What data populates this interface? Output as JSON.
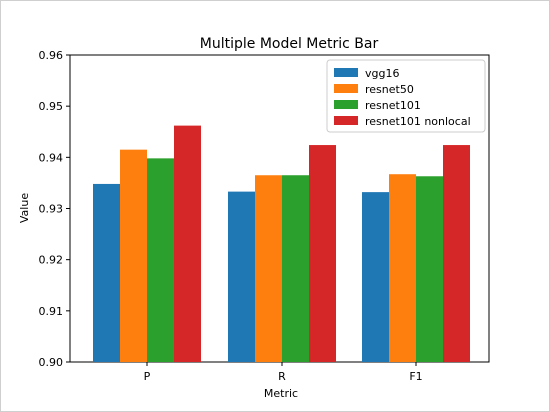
{
  "chart_data": {
    "type": "bar",
    "title": "Multiple Model Metric Bar",
    "xlabel": "Metric",
    "ylabel": "Value",
    "ylim": [
      0.9,
      0.96
    ],
    "yticks": [
      "0.90",
      "0.91",
      "0.92",
      "0.93",
      "0.94",
      "0.95",
      "0.96"
    ],
    "categories": [
      "P",
      "R",
      "F1"
    ],
    "series": [
      {
        "name": "vgg16",
        "color": "#1f77b4",
        "values": [
          0.9348,
          0.9333,
          0.9332
        ]
      },
      {
        "name": "resnet50",
        "color": "#ff7f0e",
        "values": [
          0.9415,
          0.9365,
          0.9367
        ]
      },
      {
        "name": "resnet101",
        "color": "#2ca02c",
        "values": [
          0.9398,
          0.9365,
          0.9363
        ]
      },
      {
        "name": "resnet101 nonlocal",
        "color": "#d62728",
        "values": [
          0.9462,
          0.9424,
          0.9424
        ]
      }
    ],
    "legend_position": "top-right",
    "grid": false
  }
}
